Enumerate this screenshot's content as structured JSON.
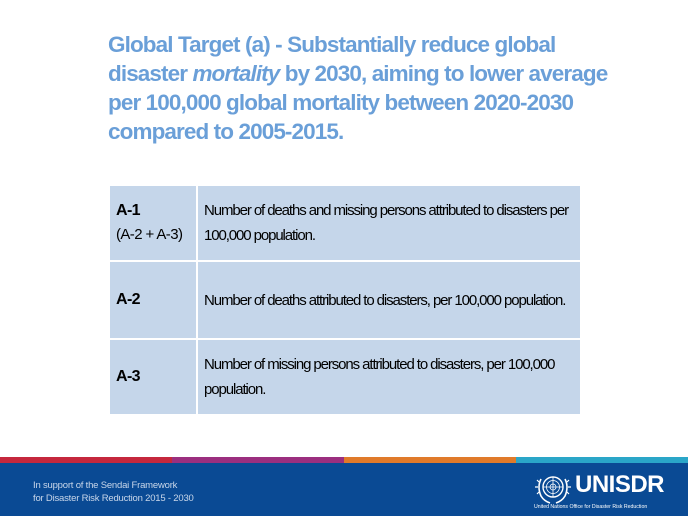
{
  "title": {
    "part1": "Global Target (a) - Substantially reduce global disaster ",
    "emphasis": "mortality",
    "part2": " by 2030, aiming to lower average per 100,000 global mortality between 2020-2030 compared to 2005-2015."
  },
  "indicators": [
    {
      "code": "A-1",
      "sub": "(A-2 + A-3)",
      "description": "Number of deaths and missing persons attributed to disasters per 100,000 population."
    },
    {
      "code": "A-2",
      "sub": "",
      "description": "Number of deaths attributed to disasters, per 100,000 population."
    },
    {
      "code": "A-3",
      "sub": "",
      "description": "Number of missing persons attributed to disasters, per 100,000 population."
    }
  ],
  "footer": {
    "line1": "In support of the Sendai Framework",
    "line2": "for Disaster Risk Reduction 2015 - 2030",
    "logo_text": "UNISDR",
    "logo_subtext": "United Nations Office for Disaster Risk Reduction",
    "logo_icon": "un-emblem-icon"
  },
  "colors": {
    "title": "#6a9fd8",
    "table_cell": "#c5d6ea",
    "footer_bg": "#0a4a94",
    "strip": [
      "#c5283d",
      "#9b2f7f",
      "#e07a2a",
      "#2aa6c8"
    ]
  }
}
